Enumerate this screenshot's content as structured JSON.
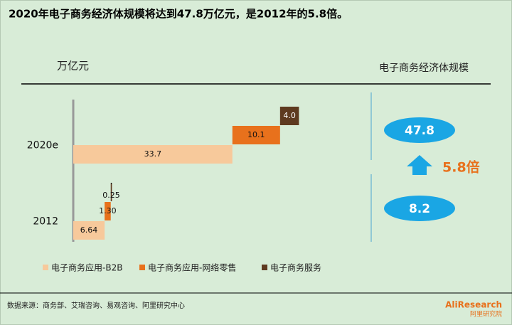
{
  "chart_data": {
    "type": "waterfall-bar",
    "title": "2020年电子商务经济体规模将达到47.8万亿元，是2012年的5.8倍。",
    "unit_label": "万亿元",
    "categories": [
      "2020e",
      "2012"
    ],
    "xlim": [
      0,
      50
    ],
    "series": [
      {
        "name": "电子商务应用-B2B",
        "color": "#f7c99b",
        "values": [
          33.7,
          6.64
        ],
        "value_labels": [
          "33.7",
          "6.64"
        ]
      },
      {
        "name": "电子商务应用-网络零售",
        "color": "#e8711c",
        "values": [
          10.1,
          1.3
        ],
        "value_labels": [
          "10.1",
          "1.30"
        ]
      },
      {
        "name": "电子商务服务",
        "color": "#5e3a1f",
        "values": [
          4.0,
          0.25
        ],
        "value_labels": [
          "4.0",
          "0.25"
        ]
      }
    ],
    "totals_title": "电子商务经济体规模",
    "totals": {
      "color": "#1aa6e4",
      "values": [
        47.8,
        8.2
      ]
    },
    "ratio_label": "5.8倍",
    "source": "数据来源：商务部、艾瑞咨询、易观咨询、阿里研究中心",
    "logo": {
      "brand": "AliResearch",
      "name": "阿里研究院"
    }
  }
}
